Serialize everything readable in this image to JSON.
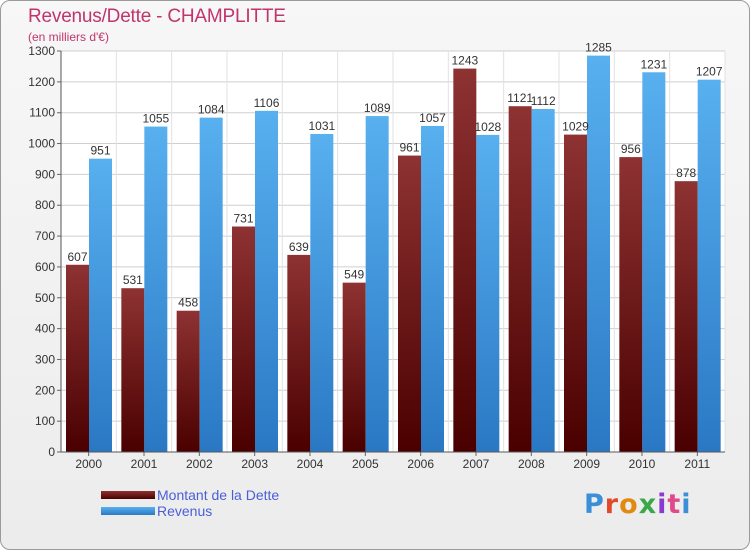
{
  "chart_data": {
    "type": "bar",
    "title": "Revenus/Dette - CHAMPLITTE",
    "subtitle": "(en milliers d'€)",
    "categories": [
      "2000",
      "2001",
      "2002",
      "2003",
      "2004",
      "2005",
      "2006",
      "2007",
      "2008",
      "2009",
      "2010",
      "2011"
    ],
    "series": [
      {
        "name": "Montant de la Dette",
        "values": [
          607,
          531,
          458,
          731,
          639,
          549,
          961,
          1243,
          1121,
          1029,
          956,
          878
        ],
        "color": "#7a1f1f"
      },
      {
        "name": "Revenus",
        "values": [
          951,
          1055,
          1084,
          1106,
          1031,
          1089,
          1057,
          1028,
          1112,
          1285,
          1231,
          1207
        ],
        "color": "#4aa3e8"
      }
    ],
    "ylim": [
      0,
      1300
    ],
    "yticks": [
      0,
      100,
      200,
      300,
      400,
      500,
      600,
      700,
      800,
      900,
      1000,
      1100,
      1200,
      1300
    ],
    "grid": true,
    "legend_position": "bottom-left"
  },
  "logo_text": "Proxiti",
  "logo_colors": [
    "#3a8fd8",
    "#e04a2a",
    "#e08a10",
    "#3aa84a",
    "#8a3ad0",
    "#e04a8a",
    "#3a8fd8"
  ]
}
